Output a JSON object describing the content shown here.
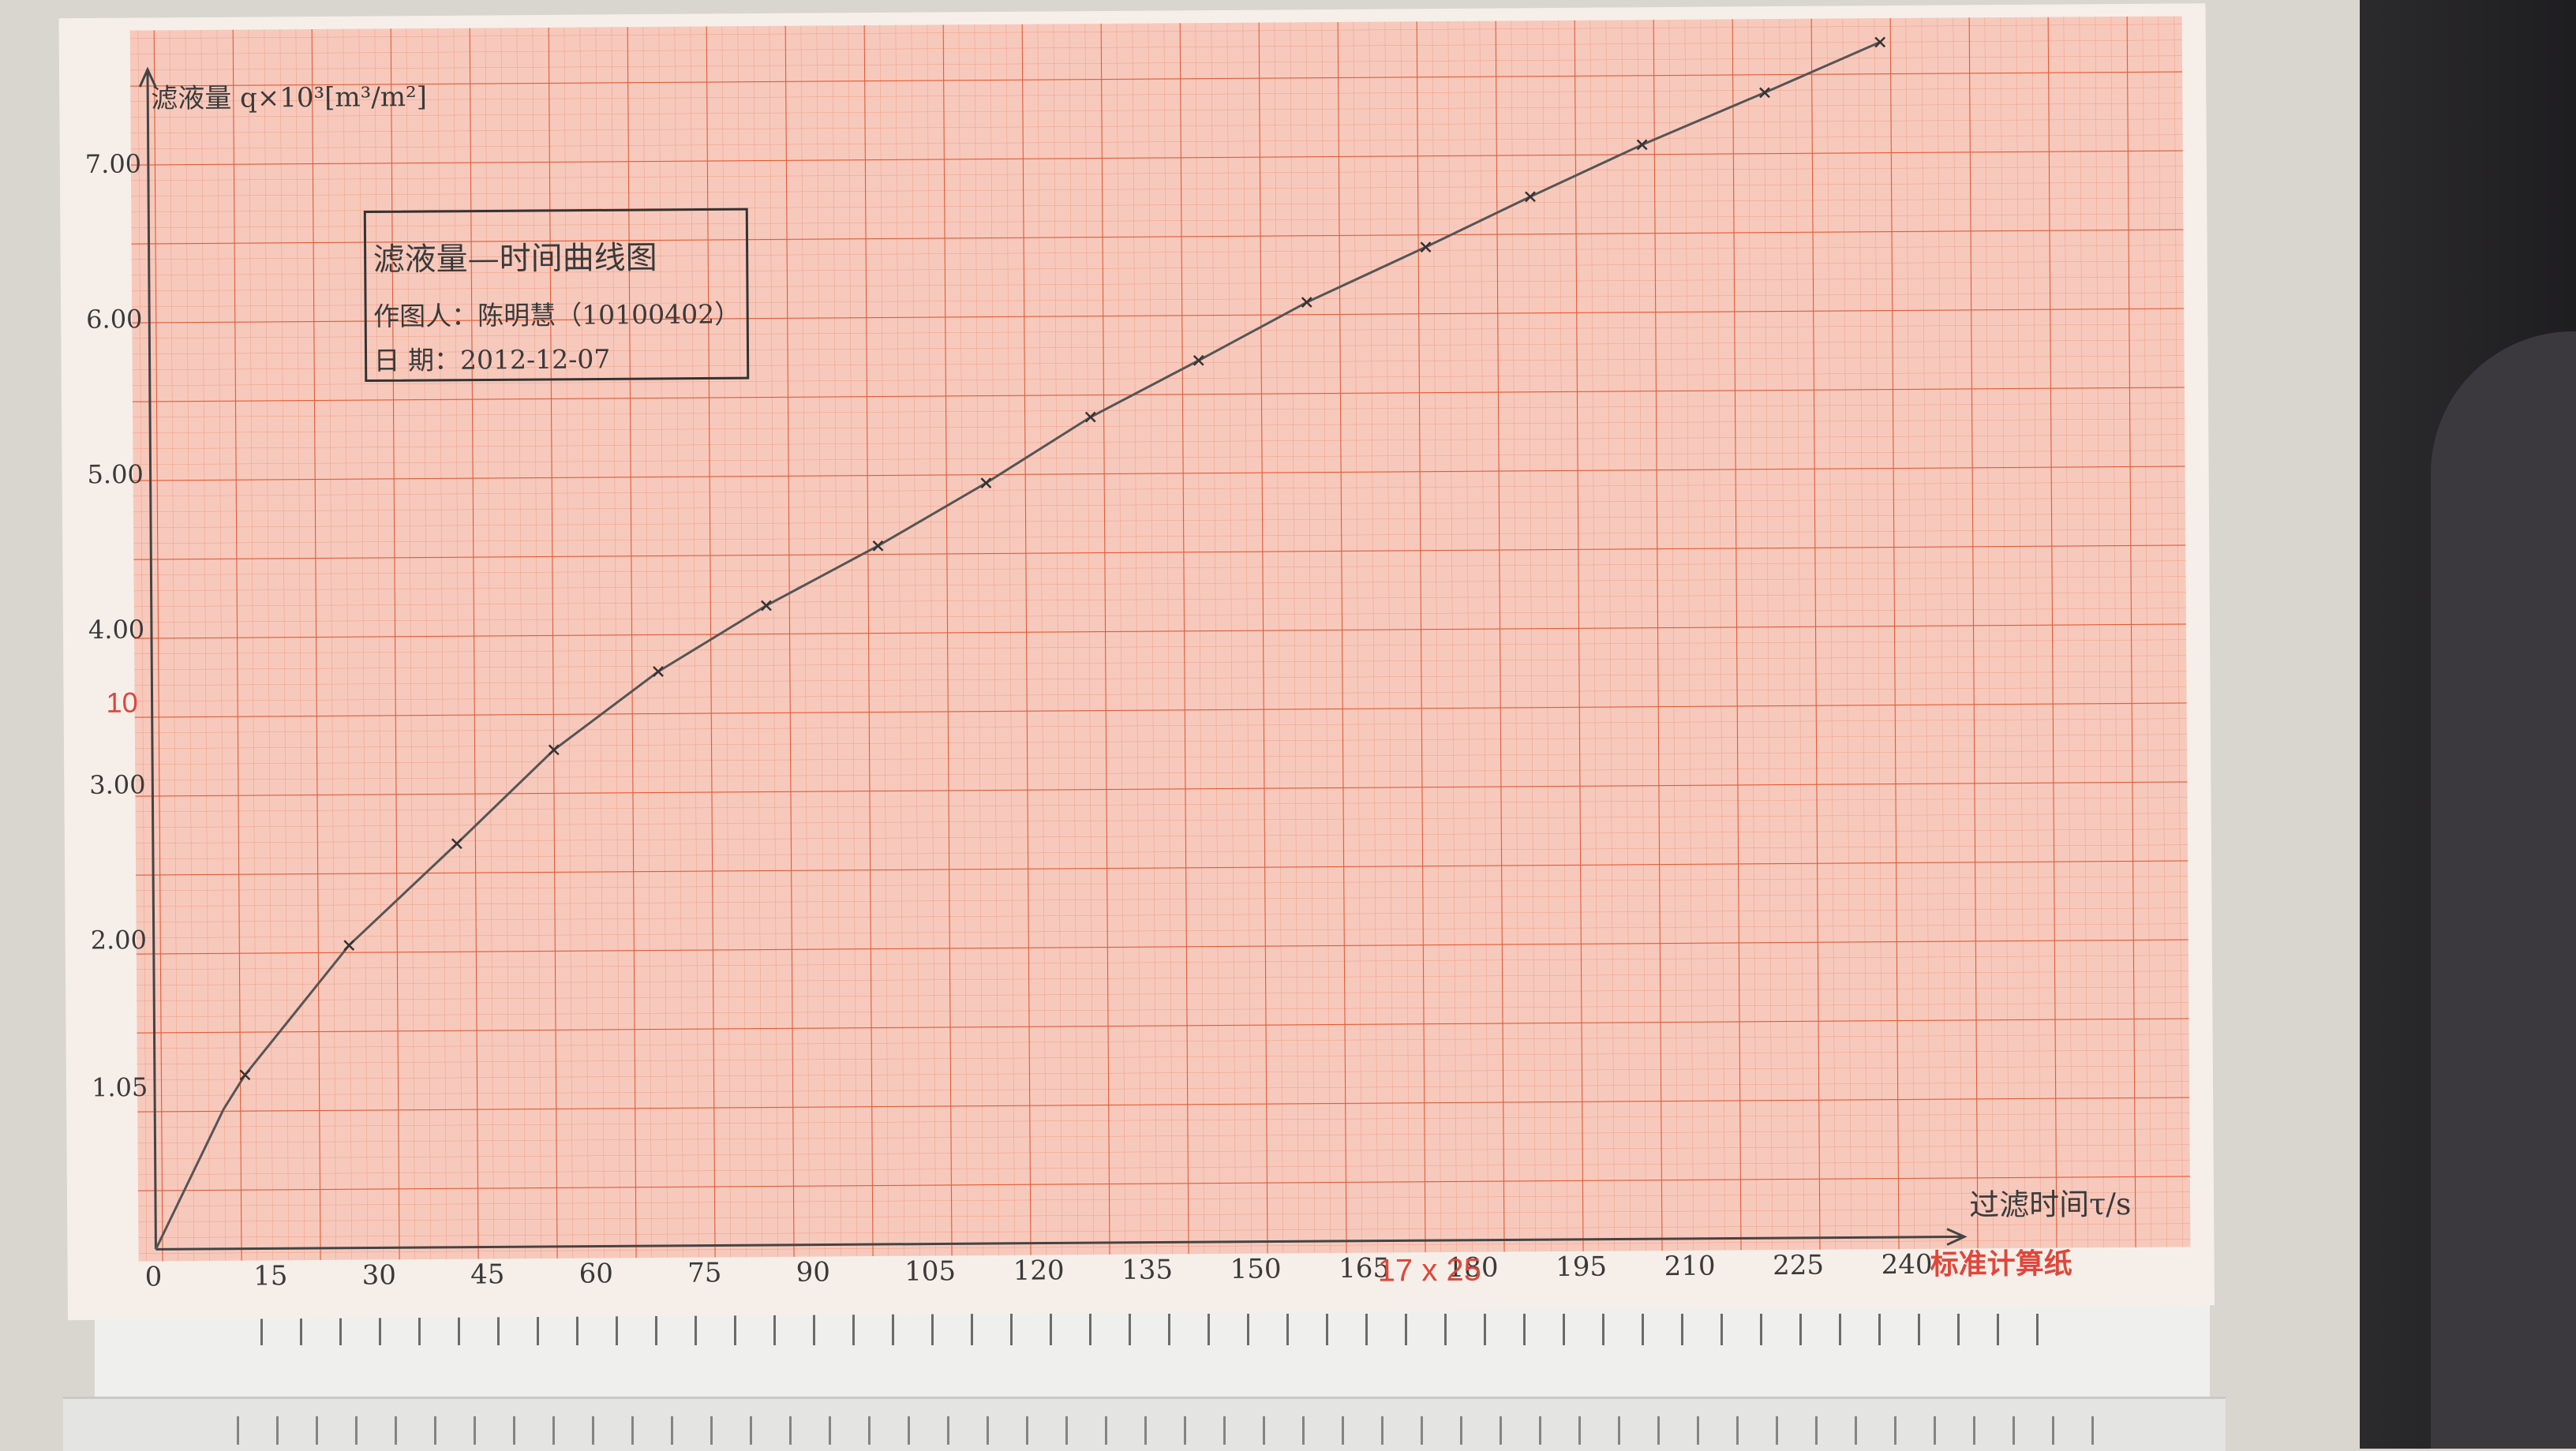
{
  "chart_data": {
    "type": "line",
    "title": "滤液量—时间曲线图",
    "author_line": "作图人：陈明慧（10100402）",
    "date_line": "日 期：2012-12-07",
    "ylabel": "滤液量 q×10³[m³/m²]",
    "xlabel": "过滤时间τ/s",
    "y_tick_labels": [
      "1.05",
      "2.00",
      "3.00",
      "4.00",
      "5.00",
      "6.00",
      "7.00"
    ],
    "y_tick_values": [
      1.05,
      2.0,
      3.0,
      4.0,
      5.0,
      6.0,
      7.0
    ],
    "x_tick_labels": [
      "0",
      "15",
      "30",
      "45",
      "60",
      "75",
      "90",
      "105",
      "120",
      "135",
      "150",
      "165",
      "180",
      "195",
      "210",
      "225",
      "240"
    ],
    "x_tick_values": [
      0,
      15,
      30,
      45,
      60,
      75,
      90,
      105,
      120,
      135,
      150,
      165,
      180,
      195,
      210,
      225,
      240
    ],
    "xlim": [
      0,
      250
    ],
    "ylim": [
      0,
      7.5
    ],
    "grid": true,
    "series": [
      {
        "x": [
          0,
          9.5,
          12.5,
          27,
          42,
          55.5,
          70,
          85,
          100.5,
          115.5,
          130,
          145,
          160,
          176.5,
          191,
          206.5,
          223.5,
          239.5
        ],
        "y": [
          0,
          0.9,
          1.12,
          1.95,
          2.6,
          3.2,
          3.7,
          4.12,
          4.5,
          4.9,
          5.32,
          5.68,
          6.05,
          6.4,
          6.72,
          7.05,
          7.38,
          7.7
        ]
      }
    ],
    "marker_x": [
      12.5,
      27,
      42,
      55.5,
      70,
      85,
      100.5,
      115.5,
      130,
      145,
      160,
      176.5,
      191,
      206.5,
      223.5,
      239.5
    ],
    "marker_y": [
      1.12,
      1.95,
      2.6,
      3.2,
      3.7,
      4.12,
      4.5,
      4.9,
      5.32,
      5.68,
      6.05,
      6.4,
      6.72,
      7.05,
      7.38,
      7.7
    ]
  },
  "paper": {
    "printed_number": "10",
    "printed_size": "17 x 25",
    "printed_brand": "标准计算纸",
    "grid_color": "#e8673f",
    "background_color": "#f7c9bc"
  }
}
